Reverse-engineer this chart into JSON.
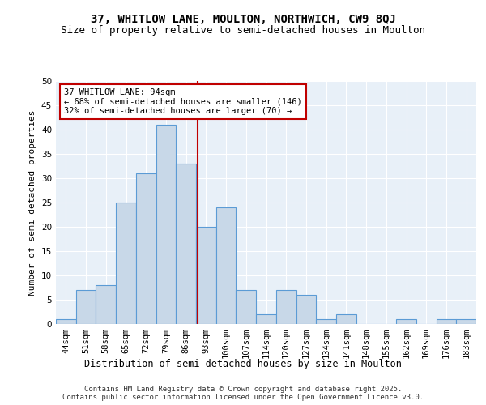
{
  "title1": "37, WHITLOW LANE, MOULTON, NORTHWICH, CW9 8QJ",
  "title2": "Size of property relative to semi-detached houses in Moulton",
  "xlabel": "Distribution of semi-detached houses by size in Moulton",
  "ylabel": "Number of semi-detached properties",
  "categories": [
    "44sqm",
    "51sqm",
    "58sqm",
    "65sqm",
    "72sqm",
    "79sqm",
    "86sqm",
    "93sqm",
    "100sqm",
    "107sqm",
    "114sqm",
    "120sqm",
    "127sqm",
    "134sqm",
    "141sqm",
    "148sqm",
    "155sqm",
    "162sqm",
    "169sqm",
    "176sqm",
    "183sqm"
  ],
  "values": [
    1,
    7,
    8,
    25,
    31,
    41,
    33,
    20,
    24,
    7,
    2,
    7,
    6,
    1,
    2,
    0,
    0,
    1,
    0,
    1,
    1
  ],
  "bar_color": "#c8d8e8",
  "bar_edge_color": "#5b9bd5",
  "vline_x": 6.57,
  "vline_color": "#c00000",
  "annotation_text": "37 WHITLOW LANE: 94sqm\n← 68% of semi-detached houses are smaller (146)\n32% of semi-detached houses are larger (70) →",
  "annotation_box_color": "#c00000",
  "ylim": [
    0,
    50
  ],
  "yticks": [
    0,
    5,
    10,
    15,
    20,
    25,
    30,
    35,
    40,
    45,
    50
  ],
  "background_color": "#e8f0f8",
  "footer_text": "Contains HM Land Registry data © Crown copyright and database right 2025.\nContains public sector information licensed under the Open Government Licence v3.0.",
  "title1_fontsize": 10,
  "title2_fontsize": 9,
  "xlabel_fontsize": 8.5,
  "ylabel_fontsize": 8,
  "tick_fontsize": 7.5,
  "annotation_fontsize": 7.5,
  "footer_fontsize": 6.5
}
